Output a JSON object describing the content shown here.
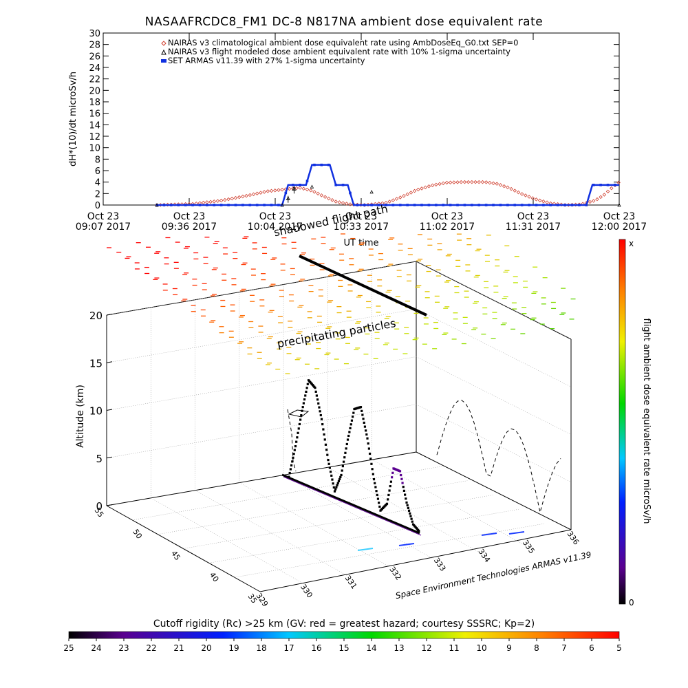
{
  "title": "NASAAFRCDC8_FM1 DC-8    N817NA ambient dose equivalent rate",
  "chart_data": [
    {
      "type": "line",
      "ylabel": "dH*(10)/dt microSv/h",
      "xlabel": "UT time",
      "ylim": [
        0,
        30
      ],
      "yticks": [
        "0",
        "2",
        "4",
        "6",
        "8",
        "10",
        "12",
        "14",
        "16",
        "18",
        "20",
        "22",
        "24",
        "26",
        "28",
        "30"
      ],
      "xticks": [
        {
          "l1": "Oct 23",
          "l2": "09:07 2017"
        },
        {
          "l1": "Oct 23",
          "l2": "09:36 2017"
        },
        {
          "l1": "Oct 23",
          "l2": "10:04 2017"
        },
        {
          "l1": "Oct 23",
          "l2": "10:33 2017"
        },
        {
          "l1": "Oct 23",
          "l2": "11:02 2017"
        },
        {
          "l1": "Oct 23",
          "l2": "11:31 2017"
        },
        {
          "l1": "Oct 23",
          "l2": "12:00 2017"
        }
      ],
      "x_minutes_range": [
        0,
        173
      ],
      "legend": [
        {
          "name": "NAIRAS v3 climatological ambient dose equivalent rate using AmbDoseEq_G0.txt SEP=0",
          "symbol": "diamond",
          "color": "#d04030"
        },
        {
          "name": "NAIRAS v3 flight modeled dose ambient equivalent rate with 10% 1-sigma uncertainty",
          "symbol": "triangle",
          "color": "#000000"
        },
        {
          "name": "SET ARMAS v11.39 with 27% 1-sigma uncertainty",
          "symbol": "square",
          "color": "#1030e0"
        }
      ],
      "series": [
        {
          "name": "NAIRAS v3 climatological ambient dose equivalent rate using AmbDoseEq_G0.txt SEP=0",
          "points": [
            [
              18,
              0
            ],
            [
              30,
              0.2
            ],
            [
              40,
              0.8
            ],
            [
              48,
              1.6
            ],
            [
              55,
              2.4
            ],
            [
              62,
              2.8
            ],
            [
              66,
              3.0
            ],
            [
              70,
              2.5
            ],
            [
              74,
              1.5
            ],
            [
              78,
              0.6
            ],
            [
              83,
              0.1
            ],
            [
              88,
              0
            ],
            [
              95,
              0.4
            ],
            [
              100,
              1.4
            ],
            [
              105,
              2.6
            ],
            [
              110,
              3.4
            ],
            [
              115,
              3.9
            ],
            [
              120,
              4.0
            ],
            [
              128,
              4.0
            ],
            [
              132,
              3.7
            ],
            [
              136,
              3.0
            ],
            [
              140,
              2.0
            ],
            [
              145,
              1.0
            ],
            [
              150,
              0.3
            ],
            [
              155,
              0
            ],
            [
              160,
              0.1
            ],
            [
              165,
              0.8
            ],
            [
              168,
              1.8
            ],
            [
              171,
              3.2
            ],
            [
              173,
              4.0
            ]
          ]
        },
        {
          "name": "NAIRAS v3 flight modeled dose ambient equivalent rate with 10% 1-sigma uncertainty",
          "points": [
            [
              18,
              0
            ],
            [
              60,
              0
            ],
            [
              62,
              1.2
            ],
            [
              64,
              3.0
            ],
            [
              70,
              3.2
            ],
            [
              90,
              2.3
            ],
            [
              173,
              0
            ]
          ]
        },
        {
          "name": "SET ARMAS v11.39 with 27% 1-sigma uncertainty",
          "points": [
            [
              18,
              0
            ],
            [
              60,
              0
            ],
            [
              62,
              3.5
            ],
            [
              68,
              3.5
            ],
            [
              70,
              7.0
            ],
            [
              76,
              7.0
            ],
            [
              78,
              3.5
            ],
            [
              82,
              3.5
            ],
            [
              84,
              0
            ],
            [
              162,
              0
            ],
            [
              164,
              3.5
            ],
            [
              173,
              3.5
            ]
          ]
        }
      ]
    },
    {
      "type": "scatter",
      "title": "",
      "zlabel": "Altitude (km)",
      "zticks": [
        "0",
        "5",
        "10",
        "15",
        "20"
      ],
      "lat_ticks": [
        "35",
        "40",
        "45",
        "50",
        "55"
      ],
      "lon_ticks": [
        "329",
        "330",
        "331",
        "332",
        "333",
        "334",
        "335",
        "336"
      ],
      "annotations": [
        "shadowed flight path",
        "precipitating particles"
      ],
      "credit": "Space Environment Technologies ARMAS v11.39",
      "right_colorbar": {
        "label": "flight ambient dose equivalent rate microSv/h",
        "top": "x",
        "bottom": "0"
      },
      "bottom_colorbar": {
        "label": "Cutoff rigidity (Rc) >25 km (GV: red = greatest hazard; courtesy SSSRC; Kp=2)",
        "ticks": [
          "25",
          "24",
          "23",
          "22",
          "21",
          "20",
          "19",
          "18",
          "17",
          "16",
          "15",
          "14",
          "13",
          "12",
          "11",
          "10",
          "9",
          "8",
          "7",
          "6",
          "5"
        ]
      },
      "flight_altitude_profile_km": [
        0.5,
        4,
        8,
        11.5,
        11,
        8,
        4,
        1,
        3,
        7,
        10.5,
        11,
        8,
        4,
        1,
        2,
        6,
        6,
        3,
        1,
        0.5
      ]
    }
  ]
}
